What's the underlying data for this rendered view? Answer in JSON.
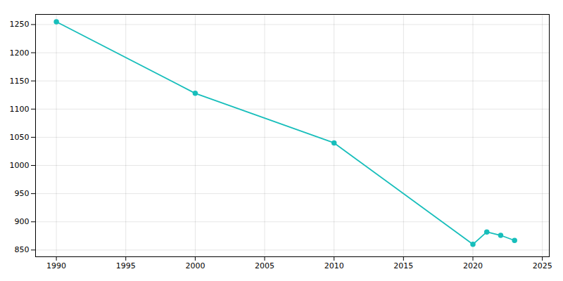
{
  "chart_data": {
    "type": "line",
    "x": [
      1990,
      2000,
      2010,
      2020,
      2021,
      2022,
      2023
    ],
    "values": [
      1255,
      1128,
      1040,
      860,
      882,
      876,
      867
    ],
    "color": "#17bebb",
    "marker": "circle",
    "xlim": [
      1988.5,
      2025.5
    ],
    "ylim": [
      838,
      1268
    ],
    "xticks": [
      1990,
      1995,
      2000,
      2005,
      2010,
      2015,
      2020,
      2025
    ],
    "yticks": [
      850,
      900,
      950,
      1000,
      1050,
      1100,
      1150,
      1200,
      1250
    ],
    "grid": true
  }
}
